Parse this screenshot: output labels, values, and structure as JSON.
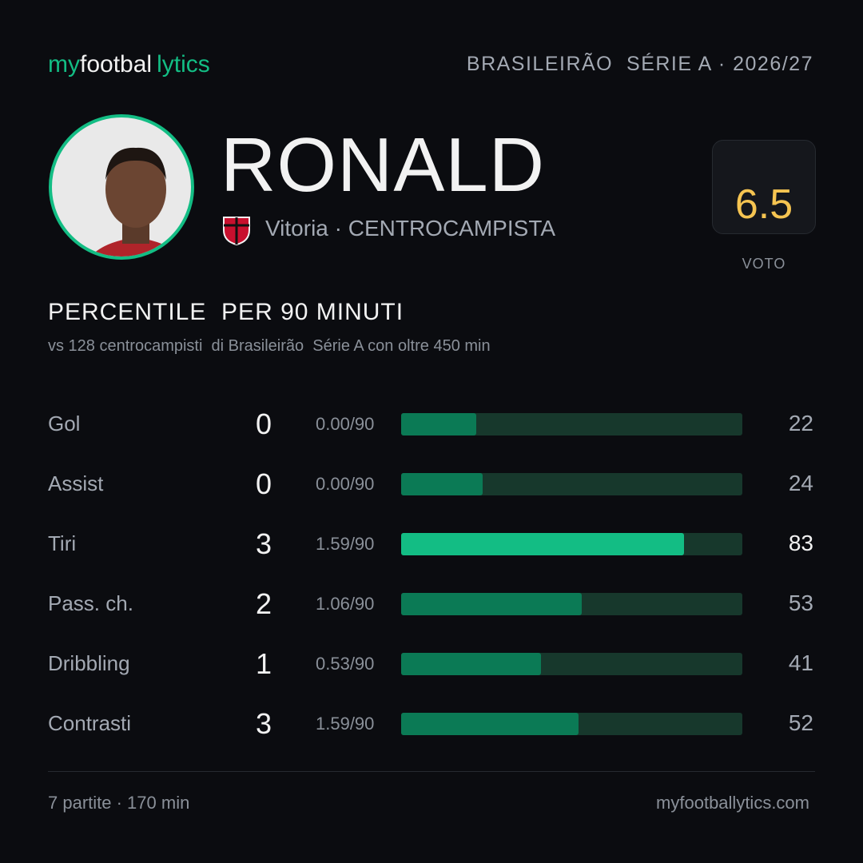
{
  "header": {
    "brand": [
      "my",
      "footbal",
      "lytics"
    ],
    "competition": "BRASILEIRÃO  SÉRIE A · 2026/27"
  },
  "player": {
    "name": "RONALD",
    "team": "Vitoria",
    "role": "· CENTROCAMPISTA"
  },
  "rating": {
    "value": 6.5,
    "label": "VOTO"
  },
  "section": {
    "title": "PERCENTILE  PER 90 MINUTI",
    "subtitle": "vs 128 centrocampisti  di Brasileirão  Série A con oltre 450 min"
  },
  "stats": {
    "xlim": [
      0,
      100
    ],
    "colors": {
      "bar": "#0b7a55",
      "highlight": "#13bd84",
      "track": "#17382c"
    },
    "rows": [
      {
        "label": "Gol",
        "value": 0,
        "per90": "0.00/90",
        "percentile": 22,
        "highlight": false
      },
      {
        "label": "Assist",
        "value": 0,
        "per90": "0.00/90",
        "percentile": 24,
        "highlight": false
      },
      {
        "label": "Tiri",
        "value": 3,
        "per90": "1.59/90",
        "percentile": 83,
        "highlight": true
      },
      {
        "label": "Pass. ch.",
        "value": 2,
        "per90": "1.06/90",
        "percentile": 53,
        "highlight": false
      },
      {
        "label": "Dribbling",
        "value": 1,
        "per90": "0.53/90",
        "percentile": 41,
        "highlight": false
      },
      {
        "label": "Contrasti",
        "value": 3,
        "per90": "1.59/90",
        "percentile": 52,
        "highlight": false
      }
    ]
  },
  "footer": {
    "summary": "7 partite · 170 min",
    "site": "myfootballytics.com"
  }
}
